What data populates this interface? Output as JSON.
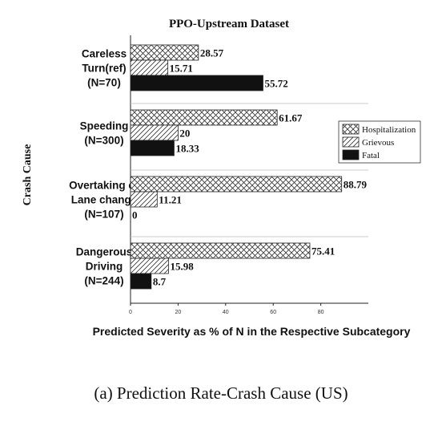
{
  "chart_data": {
    "type": "bar",
    "orientation": "horizontal",
    "title": "PPO-Upstream Dataset",
    "xlabel": "Predicted Severity as % of N in the Respective Subcategory",
    "ylabel": "Crash Cause",
    "xlim": [
      0,
      100
    ],
    "xticks": [
      "0",
      "20",
      "40",
      "60",
      "80"
    ],
    "grid": false,
    "legend_position": "right",
    "categories": [
      [
        "Careless",
        "Turn(ref)",
        "(N=70)"
      ],
      [
        "Speeding",
        "(N=300)"
      ],
      [
        "Overtaking or",
        "Lane change",
        "(N=107)"
      ],
      [
        "Dangerous",
        "Driving",
        "(N=244)"
      ]
    ],
    "series": [
      {
        "name": "Hospitalization",
        "pattern": "crosshatch",
        "values": [
          28.57,
          61.67,
          88.79,
          75.41
        ],
        "labels": [
          "28.57",
          "61.67",
          "88.79",
          "75.41"
        ]
      },
      {
        "name": "Grievous",
        "pattern": "diagonal",
        "values": [
          15.71,
          20,
          11.21,
          15.98
        ],
        "labels": [
          "15.71",
          "20",
          "11.21",
          "15.98"
        ]
      },
      {
        "name": "Fatal",
        "pattern": "solid",
        "color": "#111111",
        "values": [
          55.72,
          18.33,
          0,
          8.7
        ],
        "labels": [
          "55.72",
          "18.33",
          "0",
          "8.7"
        ]
      }
    ]
  },
  "caption": "(a)   Prediction Rate-Crash Cause (US)"
}
